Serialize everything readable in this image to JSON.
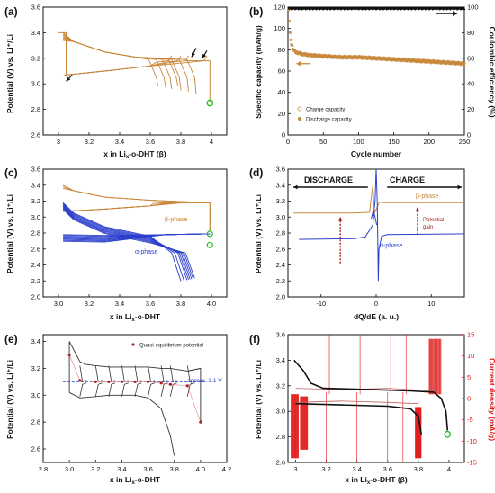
{
  "colors": {
    "beta": "#c8873a",
    "alpha": "#2b3fcc",
    "red": "#e01010",
    "green": "#22c022",
    "black": "#111111",
    "dots": "#aa2222"
  },
  "chart_data": [
    {
      "panel_label": "(a)",
      "type": "line",
      "xlabel": "x in Li",
      "xlabel_sub": "x",
      "xlabel_tail": "-o-DHT (β)",
      "ylabel": "Potential (V) vs. Li⁺/Li",
      "xlim": [
        2.9,
        4.1
      ],
      "ylim": [
        2.6,
        3.6
      ],
      "xticks": [
        3.0,
        3.2,
        3.4,
        3.6,
        3.8,
        4.0
      ],
      "yticks": [
        2.6,
        2.8,
        3.0,
        3.2,
        3.4,
        3.6
      ],
      "xtick_labels": [
        "3",
        "3.2",
        "3.4",
        "3.6",
        "3.8",
        "4"
      ],
      "ytick_labels": [
        "2.6",
        "2.8",
        "3.0",
        "3.2",
        "3.4",
        "3.6"
      ],
      "discharge_ends": [
        [
          3.78,
          2.98
        ],
        [
          3.74,
          2.96
        ],
        [
          3.7,
          2.97
        ],
        [
          3.65,
          2.98
        ],
        [
          3.8,
          2.95
        ],
        [
          3.85,
          2.94
        ],
        [
          3.9,
          2.92
        ]
      ],
      "charge_curves": [
        3.83,
        3.78,
        3.72,
        3.95
      ],
      "marker": [
        3.99,
        2.85
      ]
    },
    {
      "panel_label": "(b)",
      "type": "scatter",
      "xlabel": "Cycle number",
      "ylabel": "Specific capacity (mAh/g)",
      "y2label": "Coulombic efficiency (%)",
      "xlim": [
        0,
        250
      ],
      "ylim": [
        0,
        120
      ],
      "y2lim": [
        0,
        100
      ],
      "xticks": [
        0,
        50,
        100,
        150,
        200,
        250
      ],
      "yticks": [
        0,
        20,
        40,
        60,
        80,
        100,
        120
      ],
      "y2ticks": [
        0,
        20,
        40,
        60,
        80,
        100
      ],
      "legend": [
        "Charge capacity",
        "Discharge capacity"
      ],
      "capacity": {
        "x": [
          1,
          3,
          5,
          8,
          10,
          15,
          20,
          30,
          50,
          75,
          100,
          125,
          150,
          175,
          200,
          225,
          250
        ],
        "y": [
          118,
          95,
          85,
          80,
          78,
          77,
          76,
          75,
          74,
          73,
          73,
          72,
          71,
          70,
          69,
          68,
          67
        ]
      },
      "coulombic_efficiency": 99
    },
    {
      "panel_label": "(c)",
      "type": "line",
      "xlabel": "x in Li",
      "xlabel_sub": "x",
      "xlabel_tail": "-o-DHT",
      "ylabel": "Potential (V) vs. Li⁺/Li",
      "xlim": [
        2.9,
        4.1
      ],
      "ylim": [
        2.0,
        3.6
      ],
      "xticks": [
        3.0,
        3.2,
        3.4,
        3.6,
        3.8,
        4.0
      ],
      "yticks": [
        2.0,
        2.2,
        2.4,
        2.6,
        2.8,
        3.0,
        3.2,
        3.4,
        3.6
      ],
      "xtick_labels": [
        "3.0",
        "3.2",
        "3.4",
        "3.6",
        "3.8",
        "4.0"
      ],
      "ytick_labels": [
        "2.0",
        "2.2",
        "2.4",
        "2.6",
        "2.8",
        "3.0",
        "3.2",
        "3.4",
        "3.6"
      ],
      "annotations": [
        "β-phase",
        "α-phase"
      ],
      "alpha_ends": [
        3.8,
        3.82,
        3.84,
        3.85,
        3.86,
        3.87,
        3.88,
        3.89
      ],
      "marker": [
        3.99,
        2.65
      ]
    },
    {
      "panel_label": "(d)",
      "type": "line",
      "xlabel": "dQ/dE (a. u.)",
      "ylabel": "Potential (V) vs. Li⁺/Li",
      "xlim": [
        -16,
        16
      ],
      "ylim": [
        2.0,
        3.6
      ],
      "xticks": [
        -10,
        0,
        10
      ],
      "yticks": [
        2.0,
        2.2,
        2.4,
        2.6,
        2.8,
        3.0,
        3.2,
        3.4,
        3.6
      ],
      "xtick_labels": [
        "-10",
        "0",
        "10"
      ],
      "ytick_labels": [
        "2.0",
        "2.2",
        "2.4",
        "2.6",
        "2.8",
        "3.0",
        "3.2",
        "3.4",
        "3.6"
      ],
      "annotations": [
        "DISCHARGE",
        "CHARGE",
        "β-phase",
        "α-phase",
        "Potential",
        "gain"
      ]
    },
    {
      "panel_label": "(e)",
      "type": "line",
      "xlabel": "x in Li",
      "xlabel_sub": "x",
      "xlabel_tail": "-o-DHT",
      "ylabel": "Potential (V) vs. Li⁺/Li",
      "xlim": [
        2.8,
        4.2
      ],
      "ylim": [
        2.5,
        3.45
      ],
      "xticks": [
        2.8,
        3.0,
        3.2,
        3.4,
        3.6,
        3.8,
        4.0,
        4.2
      ],
      "yticks": [
        2.6,
        2.8,
        3.0,
        3.2,
        3.4
      ],
      "xtick_labels": [
        "2.8",
        "3.0",
        "3.2",
        "3.4",
        "3.6",
        "3.8",
        "4.0",
        "4.2"
      ],
      "ytick_labels": [
        "2.6",
        "2.8",
        "3.0",
        "3.2",
        "3.4"
      ],
      "legend": [
        "Quasi-equilibrium potential"
      ],
      "annotations": [
        "approx. 3.1 V"
      ],
      "equilibrium_level": 3.1,
      "quasi_points": {
        "x": [
          3.0,
          3.08,
          3.2,
          3.3,
          3.4,
          3.5,
          3.6,
          3.7,
          3.77,
          3.9,
          4.0
        ],
        "y": [
          3.3,
          3.11,
          3.1,
          3.1,
          3.1,
          3.1,
          3.1,
          3.09,
          3.08,
          3.07,
          2.8
        ]
      }
    },
    {
      "panel_label": "(f)",
      "type": "line",
      "xlabel": "x in Li",
      "xlabel_sub": "x",
      "xlabel_tail": "-o-DHT (β)",
      "ylabel": "Potential (V) vs. Li⁺/Li",
      "y2label": "Current density (mA/g)",
      "xlim": [
        2.95,
        4.1
      ],
      "ylim": [
        2.6,
        3.6
      ],
      "y2lim": [
        -15,
        15
      ],
      "xticks": [
        3.0,
        3.2,
        3.4,
        3.6,
        3.8,
        4.0
      ],
      "yticks": [
        2.6,
        2.8,
        3.0,
        3.2,
        3.4,
        3.6
      ],
      "y2ticks": [
        -15,
        -10,
        -5,
        0,
        5,
        10,
        15
      ],
      "xtick_labels": [
        "3",
        "3.2",
        "3.4",
        "3.6",
        "3.8",
        "4"
      ],
      "ytick_labels": [
        "2.6",
        "2.8",
        "3.0",
        "3.2",
        "3.4",
        "3.6"
      ],
      "marker": [
        3.99,
        2.82
      ]
    }
  ]
}
